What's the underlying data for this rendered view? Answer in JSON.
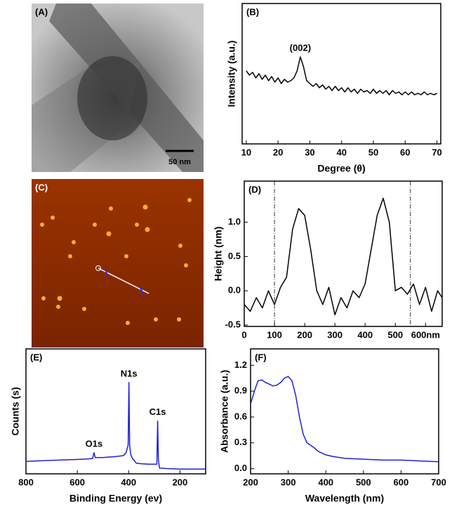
{
  "images": [
    {
      "label": "(A)",
      "scale_bar": "50 nm"
    },
    {
      "label": "(C)"
    }
  ],
  "chart_data": [
    {
      "type": "line",
      "panel_label": "(B)",
      "x_label": "Degree (θ)",
      "y_label": "Intensity (a.u.)",
      "color": "#000000",
      "x": [
        10,
        11,
        12,
        13,
        14,
        15,
        16,
        17,
        18,
        19,
        20,
        21,
        22,
        23,
        24,
        25,
        26,
        27,
        28,
        29,
        30,
        31,
        32,
        33,
        34,
        35,
        36,
        37,
        38,
        39,
        40,
        41,
        42,
        43,
        44,
        45,
        46,
        47,
        48,
        49,
        50,
        51,
        52,
        53,
        54,
        55,
        56,
        57,
        58,
        59,
        60,
        61,
        62,
        63,
        64,
        65,
        66,
        67,
        68,
        69,
        70
      ],
      "values": [
        52,
        49,
        51,
        47,
        50,
        46,
        49,
        45,
        48,
        44,
        47,
        43,
        46,
        44,
        45,
        47,
        52,
        62,
        55,
        45,
        43,
        41,
        43,
        40,
        42,
        39,
        41,
        38,
        41,
        38,
        40,
        37,
        40,
        37,
        39,
        36,
        39,
        37,
        38,
        36,
        39,
        36,
        38,
        36,
        38,
        35,
        38,
        36,
        37,
        35,
        37,
        35,
        37,
        35,
        36,
        35,
        37,
        35,
        36,
        35,
        36
      ],
      "xlim": [
        8.7,
        71.2
      ],
      "xticks": [
        10,
        20,
        30,
        40,
        50,
        60,
        70
      ],
      "ylim": [
        0,
        100
      ],
      "annotations": [
        {
          "text": "(002)",
          "x": 27
        }
      ]
    },
    {
      "type": "line",
      "panel_label": "(D)",
      "y_label": "Height (nm)",
      "color": "#000000",
      "x": [
        0,
        20,
        40,
        60,
        80,
        100,
        120,
        140,
        160,
        180,
        200,
        220,
        240,
        260,
        280,
        300,
        320,
        340,
        360,
        380,
        400,
        420,
        440,
        460,
        480,
        500,
        520,
        540,
        560,
        580,
        600,
        620,
        640,
        655
      ],
      "values": [
        -0.2,
        -0.3,
        -0.1,
        -0.25,
        0.0,
        -0.2,
        0.05,
        0.2,
        0.9,
        1.2,
        1.1,
        0.6,
        0.0,
        -0.2,
        0.05,
        -0.35,
        -0.1,
        -0.25,
        0.0,
        -0.1,
        0.1,
        0.6,
        1.1,
        1.35,
        1.0,
        0.0,
        0.05,
        -0.05,
        0.1,
        -0.2,
        0.05,
        -0.3,
        0.0,
        -0.1
      ],
      "xlim": [
        0,
        655
      ],
      "xticks": [
        0,
        100,
        200,
        300,
        400,
        500,
        {
          "value": 600,
          "label": "600nm"
        }
      ],
      "ylim": [
        -0.52,
        1.6
      ],
      "yticks": [
        -0.5,
        {
          "value": 0,
          "label": "0.0"
        },
        0.5,
        {
          "value": 1,
          "label": "1.0"
        }
      ],
      "reference_lines": [
        100,
        550
      ]
    },
    {
      "type": "line",
      "panel_label": "(E)",
      "x_label": "Binding Energy (ev)",
      "y_label": "Counts (s)",
      "color": "#1f1fdd",
      "x": [
        800,
        750,
        700,
        650,
        600,
        560,
        540,
        535,
        530,
        500,
        450,
        420,
        410,
        402,
        399,
        396,
        392,
        385,
        370,
        350,
        320,
        300,
        290,
        287,
        284,
        280,
        250,
        200,
        150,
        100
      ],
      "values": [
        13,
        13.5,
        14,
        14.5,
        15,
        15.5,
        16,
        22,
        17,
        17,
        18,
        19,
        22,
        30,
        95,
        30,
        20,
        16,
        11,
        10.5,
        10,
        10,
        10,
        55,
        15,
        6,
        5.5,
        5,
        5,
        5
      ],
      "xlim": [
        800,
        100
      ],
      "xticks": [
        800,
        600,
        400,
        200
      ],
      "ylim": [
        0,
        130
      ],
      "annotations": [
        {
          "text": "O1s",
          "x": 535
        },
        {
          "text": "N1s",
          "x": 399
        },
        {
          "text": "C1s",
          "x": 287
        }
      ]
    },
    {
      "type": "line",
      "panel_label": "(F)",
      "x_label": "Wavelength (nm)",
      "y_label": "Absorbance (a.u.)",
      "color": "#1f1fdd",
      "x": [
        200,
        210,
        220,
        230,
        240,
        250,
        260,
        270,
        280,
        290,
        300,
        310,
        320,
        330,
        340,
        350,
        360,
        370,
        380,
        400,
        420,
        450,
        500,
        550,
        600,
        650,
        700
      ],
      "values": [
        0.75,
        0.9,
        1.02,
        1.03,
        1.0,
        0.98,
        0.96,
        0.97,
        1.0,
        1.05,
        1.07,
        1.02,
        0.85,
        0.6,
        0.4,
        0.3,
        0.27,
        0.24,
        0.2,
        0.16,
        0.14,
        0.12,
        0.11,
        0.1,
        0.1,
        0.09,
        0.08
      ],
      "xlim": [
        200,
        700
      ],
      "xticks": [
        200,
        300,
        400,
        500,
        600,
        700
      ],
      "ylim": [
        -0.06,
        1.39
      ],
      "yticks": [
        {
          "value": 0,
          "label": "0.0"
        },
        0.3,
        0.6,
        0.9,
        1.2
      ]
    }
  ]
}
